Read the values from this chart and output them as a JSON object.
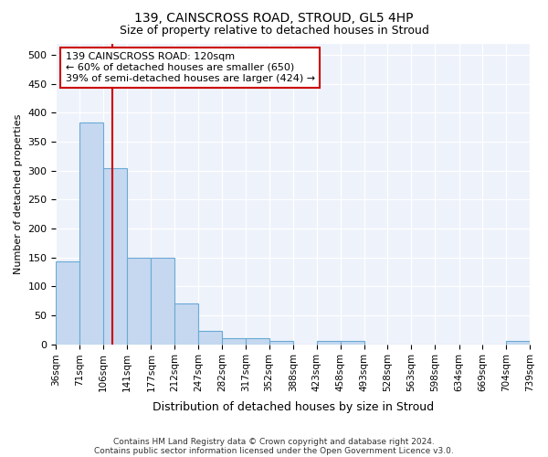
{
  "title1": "139, CAINSCROSS ROAD, STROUD, GL5 4HP",
  "title2": "Size of property relative to detached houses in Stroud",
  "xlabel": "Distribution of detached houses by size in Stroud",
  "ylabel": "Number of detached properties",
  "bar_edges": [
    36,
    71,
    106,
    141,
    177,
    212,
    247,
    282,
    317,
    352,
    388,
    423,
    458,
    493,
    528,
    563,
    598,
    634,
    669,
    704,
    739
  ],
  "bar_heights": [
    143,
    383,
    305,
    149,
    149,
    70,
    23,
    10,
    10,
    5,
    0,
    5,
    5,
    0,
    0,
    0,
    0,
    0,
    0,
    5
  ],
  "bar_color": "#c5d8f0",
  "bar_edge_color": "#6aaad4",
  "vline_x": 120,
  "vline_color": "#cc0000",
  "annotation_text": "139 CAINSCROSS ROAD: 120sqm\n← 60% of detached houses are smaller (650)\n39% of semi-detached houses are larger (424) →",
  "annotation_box_color": "#cc0000",
  "ylim": [
    0,
    520
  ],
  "yticks": [
    0,
    50,
    100,
    150,
    200,
    250,
    300,
    350,
    400,
    450,
    500
  ],
  "bg_color": "#eef2fb",
  "footer_line1": "Contains HM Land Registry data © Crown copyright and database right 2024.",
  "footer_line2": "Contains public sector information licensed under the Open Government Licence v3.0.",
  "title1_fontsize": 10,
  "title2_fontsize": 9,
  "xlabel_fontsize": 9,
  "ylabel_fontsize": 8,
  "tick_fontsize": 8,
  "annot_fontsize": 8,
  "footer_fontsize": 6.5
}
